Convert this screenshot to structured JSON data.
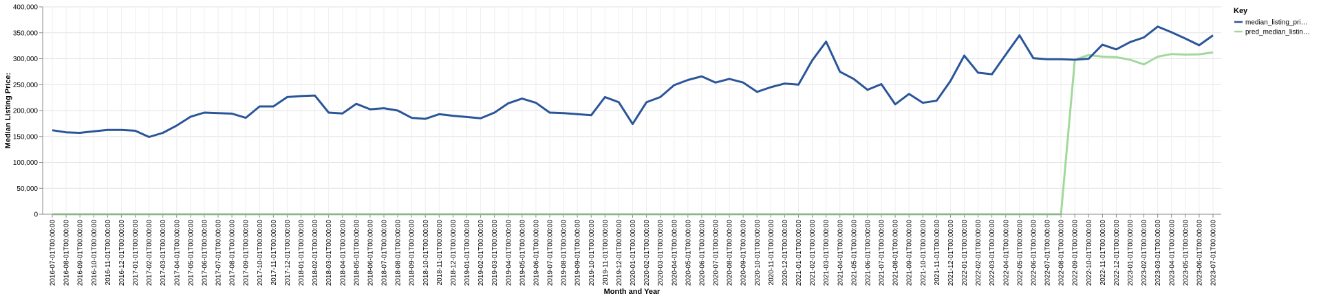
{
  "chart_data": {
    "type": "line",
    "xlabel": "Month and Year",
    "ylabel": "Median Listing Price:",
    "ylim": [
      0,
      400000
    ],
    "yticks": [
      "0",
      "50,000",
      "100,000",
      "150,000",
      "200,000",
      "250,000",
      "300,000",
      "350,000",
      "400,000"
    ],
    "ytick_values": [
      0,
      50000,
      100000,
      150000,
      200000,
      250000,
      300000,
      350000,
      400000
    ],
    "grid": true,
    "legend": {
      "title": "Key",
      "placement": "top-right"
    },
    "x": [
      "2016-07-01T00:00:00",
      "2016-08-01T00:00:00",
      "2016-09-01T00:00:00",
      "2016-10-01T00:00:00",
      "2016-11-01T00:00:00",
      "2016-12-01T00:00:00",
      "2017-01-01T00:00:00",
      "2017-02-01T00:00:00",
      "2017-03-01T00:00:00",
      "2017-04-01T00:00:00",
      "2017-05-01T00:00:00",
      "2017-06-01T00:00:00",
      "2017-07-01T00:00:00",
      "2017-08-01T00:00:00",
      "2017-09-01T00:00:00",
      "2017-10-01T00:00:00",
      "2017-11-01T00:00:00",
      "2017-12-01T00:00:00",
      "2018-01-01T00:00:00",
      "2018-02-01T00:00:00",
      "2018-03-01T00:00:00",
      "2018-04-01T00:00:00",
      "2018-05-01T00:00:00",
      "2018-06-01T00:00:00",
      "2018-07-01T00:00:00",
      "2018-08-01T00:00:00",
      "2018-09-01T00:00:00",
      "2018-10-01T00:00:00",
      "2018-11-01T00:00:00",
      "2018-12-01T00:00:00",
      "2019-01-01T00:00:00",
      "2019-02-01T00:00:00",
      "2019-03-01T00:00:00",
      "2019-04-01T00:00:00",
      "2019-05-01T00:00:00",
      "2019-06-01T00:00:00",
      "2019-07-01T00:00:00",
      "2019-08-01T00:00:00",
      "2019-09-01T00:00:00",
      "2019-10-01T00:00:00",
      "2019-11-01T00:00:00",
      "2019-12-01T00:00:00",
      "2020-01-01T00:00:00",
      "2020-02-01T00:00:00",
      "2020-03-01T00:00:00",
      "2020-04-01T00:00:00",
      "2020-05-01T00:00:00",
      "2020-06-01T00:00:00",
      "2020-07-01T00:00:00",
      "2020-08-01T00:00:00",
      "2020-09-01T00:00:00",
      "2020-10-01T00:00:00",
      "2020-11-01T00:00:00",
      "2020-12-01T00:00:00",
      "2021-01-01T00:00:00",
      "2021-02-01T00:00:00",
      "2021-03-01T00:00:00",
      "2021-04-01T00:00:00",
      "2021-05-01T00:00:00",
      "2021-06-01T00:00:00",
      "2021-07-01T00:00:00",
      "2021-08-01T00:00:00",
      "2021-09-01T00:00:00",
      "2021-10-01T00:00:00",
      "2021-11-01T00:00:00",
      "2021-12-01T00:00:00",
      "2022-01-01T00:00:00",
      "2022-02-01T00:00:00",
      "2022-03-01T00:00:00",
      "2022-04-01T00:00:00",
      "2022-05-01T00:00:00",
      "2022-06-01T00:00:00",
      "2022-07-01T00:00:00",
      "2022-08-01T00:00:00",
      "2022-09-01T00:00:00",
      "2022-10-01T00:00:00",
      "2022-11-01T00:00:00",
      "2022-12-01T00:00:00",
      "2023-01-01T00:00:00",
      "2023-02-01T00:00:00",
      "2023-03-01T00:00:00",
      "2023-04-01T00:00:00",
      "2023-05-01T00:00:00",
      "2023-06-01T00:00:00",
      "2023-07-01T00:00:00"
    ],
    "series": [
      {
        "name": "median_listing_pri…",
        "color": "#2a5599",
        "values": [
          162000,
          158000,
          157000,
          160000,
          162500,
          162500,
          161000,
          149000,
          157000,
          171000,
          188000,
          196000,
          195000,
          194000,
          186000,
          208000,
          208000,
          226000,
          228000,
          229000,
          196000,
          194500,
          213000,
          202500,
          204500,
          200000,
          186000,
          184000,
          193000,
          190000,
          187500,
          185000,
          196000,
          214000,
          223000,
          215000,
          196000,
          195000,
          193000,
          191000,
          226000,
          216000,
          174000,
          216000,
          226000,
          249000,
          259000,
          266000,
          254000,
          261000,
          254000,
          236000,
          245000,
          252000,
          250000,
          297000,
          333000,
          275000,
          261000,
          240000,
          251000,
          212000,
          232000,
          215000,
          219000,
          257000,
          306000,
          273000,
          270000,
          308000,
          345000,
          301000,
          299000,
          299000,
          298000,
          300000,
          327000,
          318000,
          332000,
          341000,
          362000,
          351000,
          339000,
          326000,
          345000
        ]
      },
      {
        "name": "pred_median_listin…",
        "color": "#a1d99b",
        "values": [
          0,
          0,
          0,
          0,
          0,
          0,
          0,
          0,
          0,
          0,
          0,
          0,
          0,
          0,
          0,
          0,
          0,
          0,
          0,
          0,
          0,
          0,
          0,
          0,
          0,
          0,
          0,
          0,
          0,
          0,
          0,
          0,
          0,
          0,
          0,
          0,
          0,
          0,
          0,
          0,
          0,
          0,
          0,
          0,
          0,
          0,
          0,
          0,
          0,
          0,
          0,
          0,
          0,
          0,
          0,
          0,
          0,
          0,
          0,
          0,
          0,
          0,
          0,
          0,
          0,
          0,
          0,
          0,
          0,
          0,
          0,
          0,
          0,
          0,
          298000,
          307000,
          304000,
          303000,
          298000,
          289000,
          304000,
          309000,
          308000,
          308500,
          312000
        ]
      }
    ]
  }
}
